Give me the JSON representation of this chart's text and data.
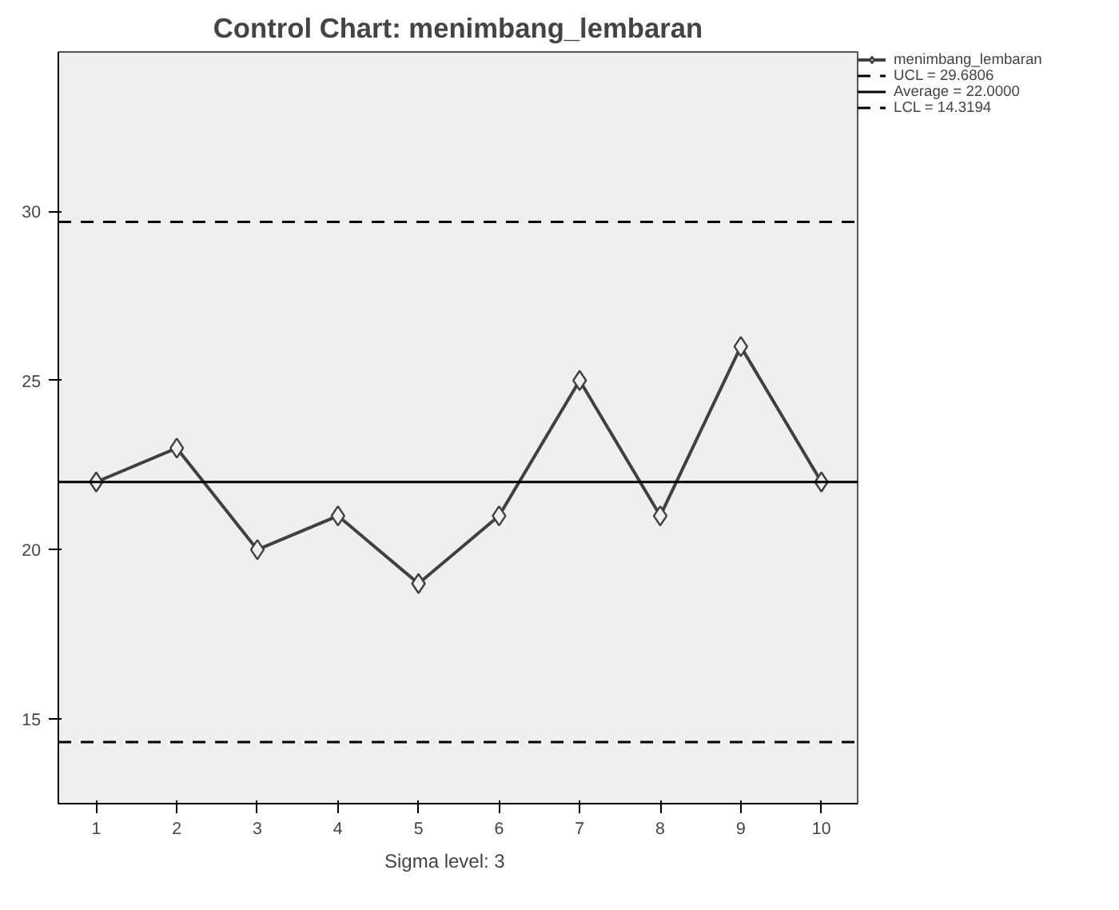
{
  "chart_data": {
    "type": "line",
    "title": "Control Chart: menimbang_lembaran",
    "x": [
      1,
      2,
      3,
      4,
      5,
      6,
      7,
      8,
      9,
      10
    ],
    "series": [
      {
        "name": "menimbang_lembaran",
        "color": "#404040",
        "values": [
          22,
          23,
          20,
          21,
          19,
          21,
          25,
          21,
          26,
          22
        ]
      }
    ],
    "ref_lines": [
      {
        "axis": "y",
        "value": 29.6806,
        "label": "UCL = 29.6806",
        "color": "#000000",
        "line_style": "dashed"
      },
      {
        "axis": "y",
        "value": 22.0,
        "label": "Average = 22.0000",
        "color": "#000000",
        "line_style": "solid"
      },
      {
        "axis": "y",
        "value": 14.3194,
        "label": "LCL = 14.3194",
        "color": "#000000",
        "line_style": "dashed"
      }
    ],
    "xlim": [
      0.53,
      10.45
    ],
    "xticks": [
      1,
      2,
      3,
      4,
      5,
      6,
      7,
      8,
      9,
      10
    ],
    "ylim": [
      12.5,
      34.7
    ],
    "yticks": [
      15,
      20,
      25,
      30
    ],
    "annotations": [
      "Sigma level:      3"
    ],
    "marker": "diamond",
    "line_style": "solid",
    "grid": false,
    "legend": "top right"
  }
}
